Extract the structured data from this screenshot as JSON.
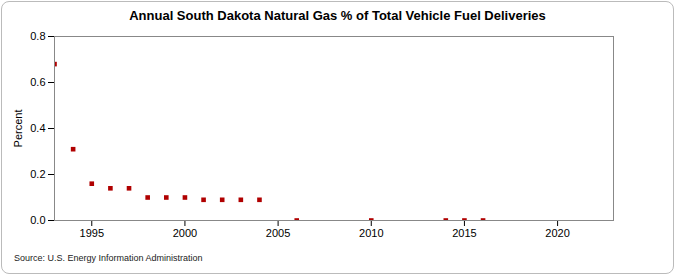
{
  "chart_data": {
    "type": "scatter",
    "title": "Annual South Dakota Natural Gas % of Total Vehicle Fuel Deliveries",
    "y_label": "Percent",
    "source": "Source: U.S. Energy Information Administration",
    "x": [
      1993,
      1994,
      1995,
      1996,
      1997,
      1998,
      1999,
      2000,
      2001,
      2002,
      2003,
      2004,
      2006,
      2010,
      2014,
      2015,
      2016
    ],
    "values": [
      0.68,
      0.31,
      0.16,
      0.14,
      0.14,
      0.1,
      0.1,
      0.1,
      0.09,
      0.09,
      0.09,
      0.09,
      0.0,
      0.0,
      0.0,
      0.0,
      0.0
    ],
    "color": "#b00000",
    "marker": "square",
    "xlim": [
      1993,
      2023
    ],
    "xticks": [
      1995,
      2000,
      2005,
      2010,
      2015,
      2020
    ],
    "ylim": [
      0,
      0.8
    ],
    "yticks": [
      {
        "value": 0,
        "label": "0.0"
      },
      0.2,
      0.4,
      0.6,
      0.8
    ],
    "grid": false
  }
}
